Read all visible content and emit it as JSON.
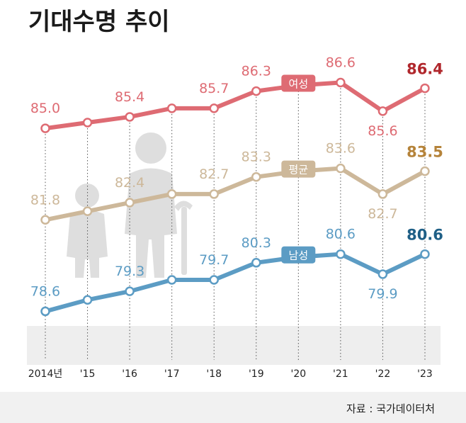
{
  "title": "기대수명 추이",
  "source": "자료 : 국가데이터처",
  "colors": {
    "female": "#de6b73",
    "average": "#cdb89a",
    "male": "#5c9cc4",
    "female_last": "#b0272c",
    "average_last": "#b5833a",
    "male_last": "#1f5f86",
    "silhouette": "#dedede",
    "floor": "#eeeeee"
  },
  "chart_data": {
    "type": "line",
    "title": "기대수명 추이",
    "categories": [
      "2014년",
      "'15",
      "'16",
      "'17",
      "'18",
      "'19",
      "'20",
      "'21",
      "'22",
      "'23"
    ],
    "ylim": [
      77,
      88
    ],
    "grid": "vertical-dotted",
    "series": [
      {
        "key": "female",
        "name": "여성",
        "values": [
          85.0,
          85.2,
          85.4,
          85.7,
          85.7,
          86.3,
          86.5,
          86.6,
          85.6,
          86.4
        ],
        "labels": [
          "85.0",
          "",
          "85.4",
          "",
          "85.7",
          "86.3",
          "",
          "86.6",
          "85.6",
          "86.4"
        ]
      },
      {
        "key": "average",
        "name": "평균",
        "values": [
          81.8,
          82.1,
          82.4,
          82.7,
          82.7,
          83.3,
          83.5,
          83.6,
          82.7,
          83.5
        ],
        "labels": [
          "81.8",
          "",
          "82.4",
          "",
          "82.7",
          "83.3",
          "",
          "83.6",
          "82.7",
          "83.5"
        ]
      },
      {
        "key": "male",
        "name": "남성",
        "values": [
          78.6,
          79.0,
          79.3,
          79.7,
          79.7,
          80.3,
          80.5,
          80.6,
          79.9,
          80.6
        ],
        "labels": [
          "78.6",
          "",
          "79.3",
          "",
          "79.7",
          "80.3",
          "",
          "80.6",
          "79.9",
          "80.6"
        ]
      }
    ]
  }
}
